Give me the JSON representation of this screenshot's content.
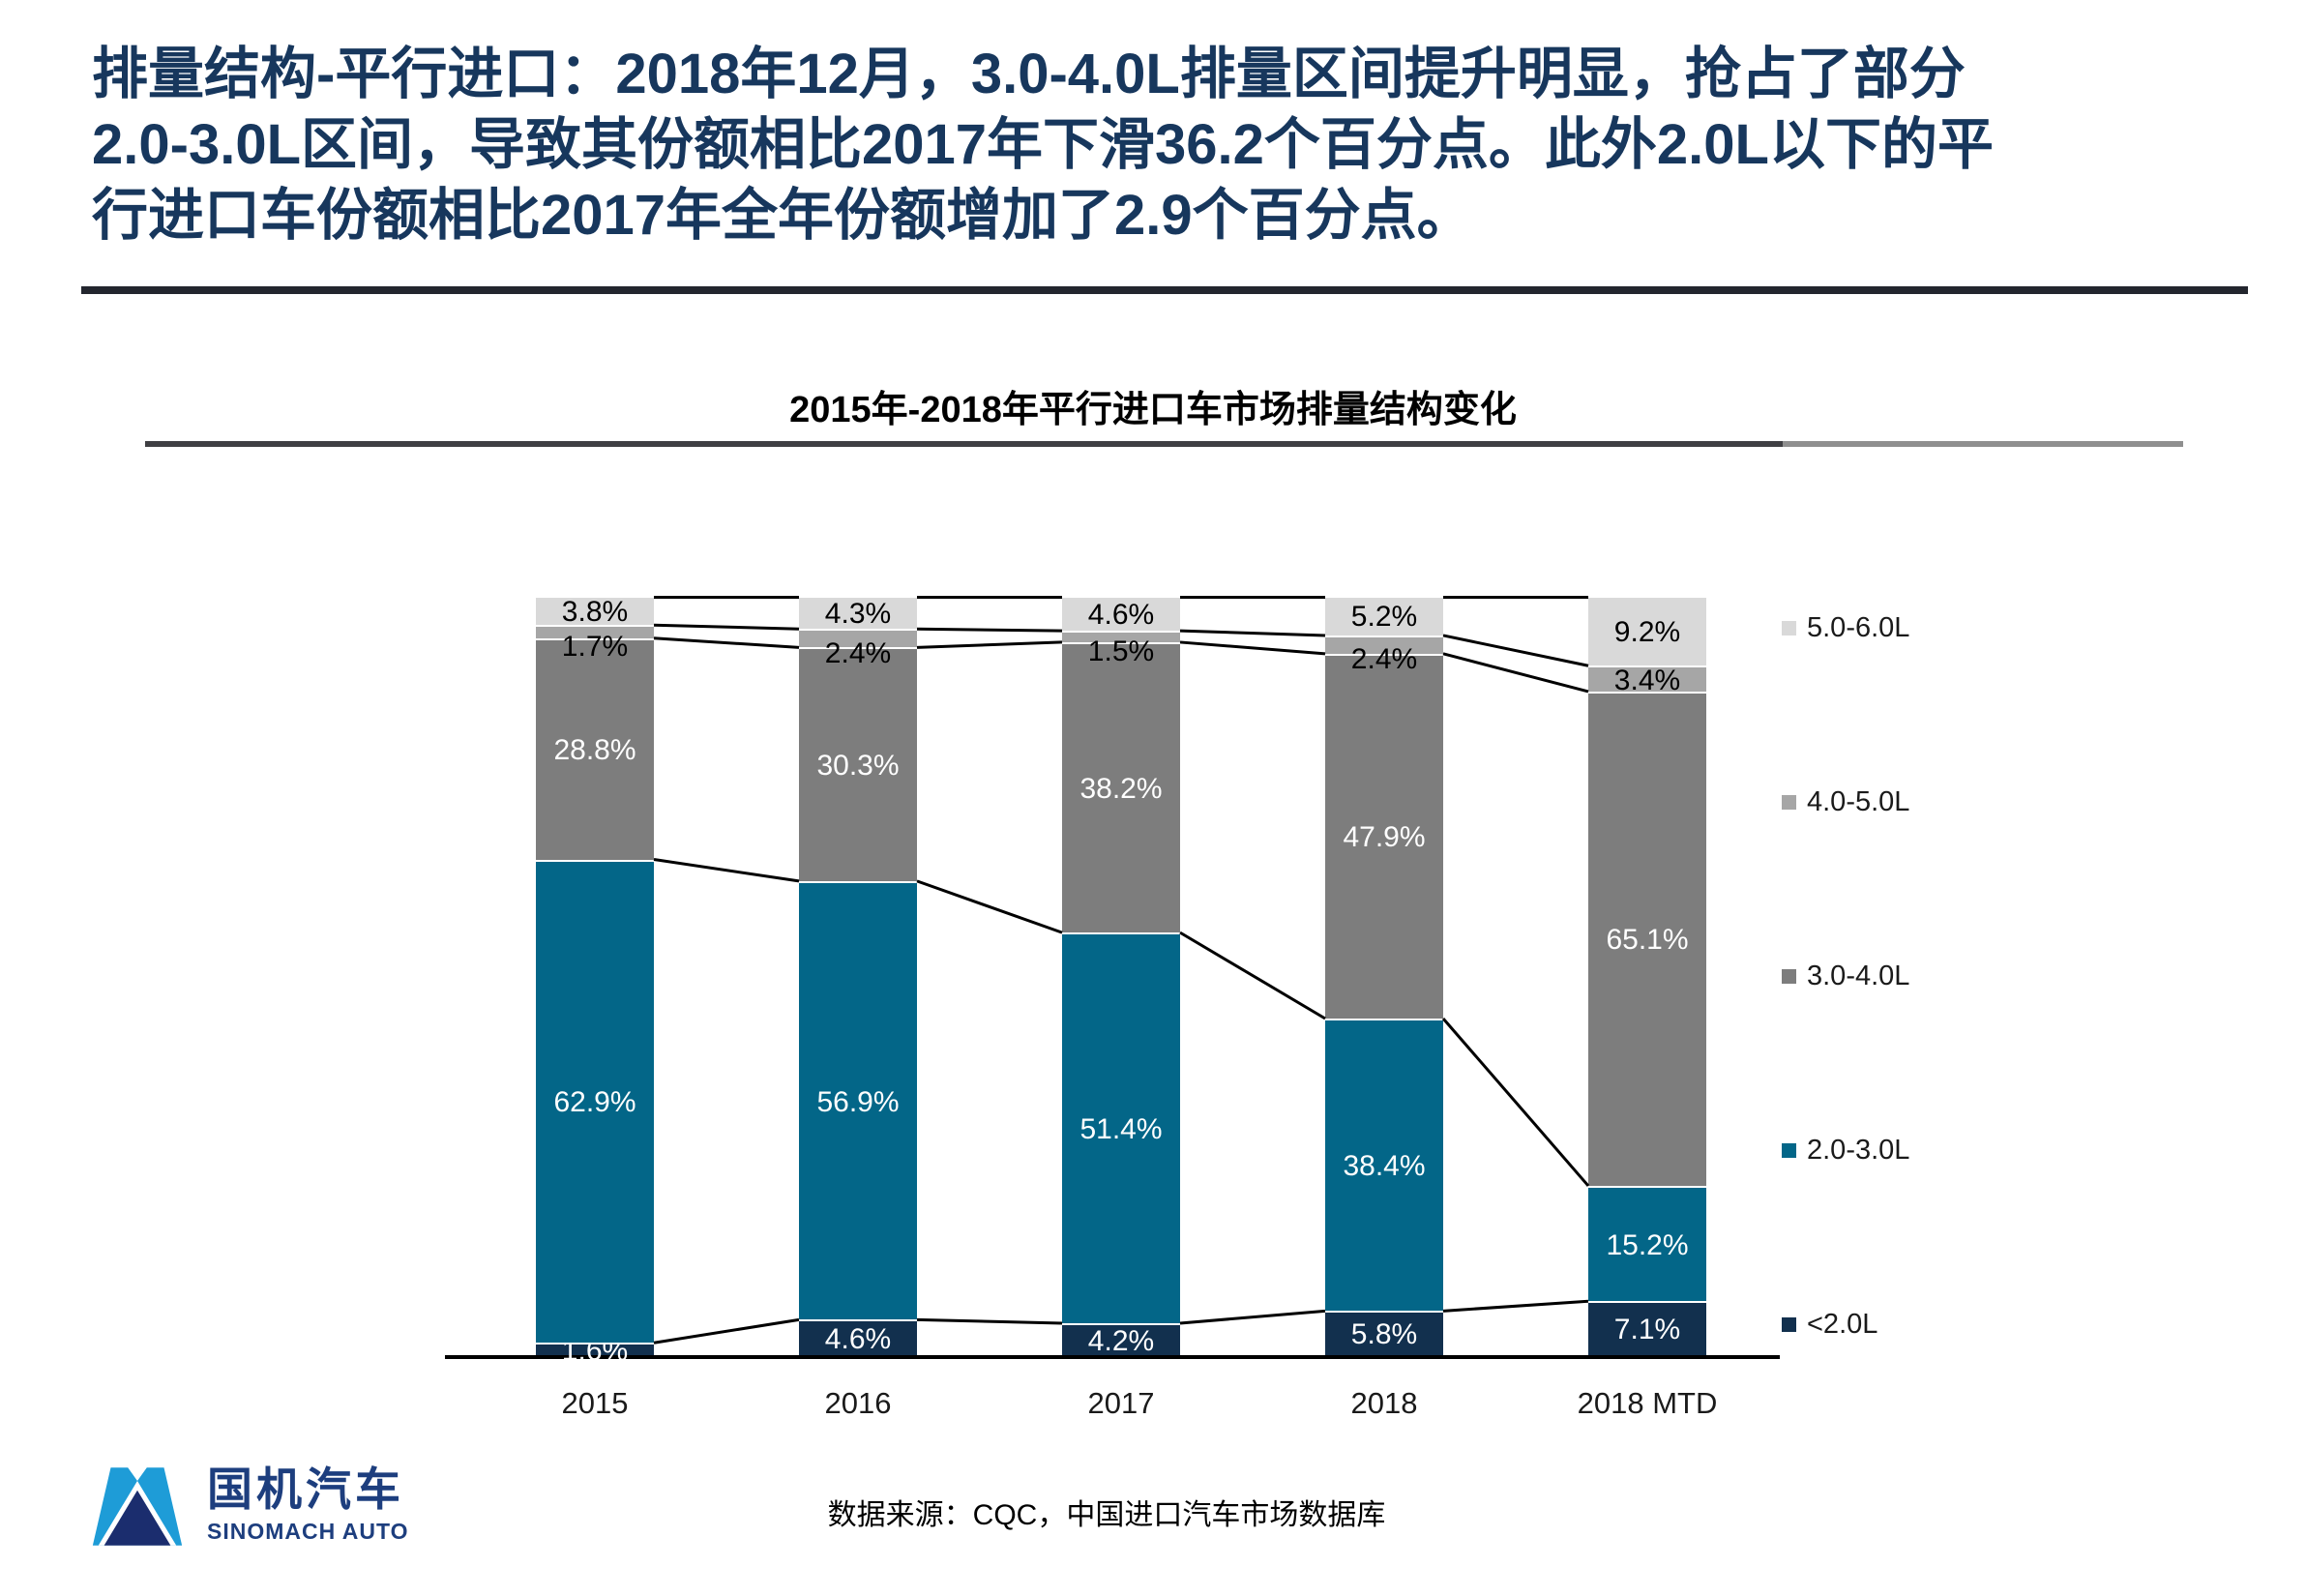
{
  "header": {
    "title_lines": [
      "排量结构-平行进口：2018年12月，3.0-4.0L排量区间提升明显，抢占了部分",
      "2.0-3.0L区间，导致其份额相比2017年下滑36.2个百分点。此外2.0L以下的平",
      "行进口车份额相比2017年全年份额增加了2.9个百分点。"
    ],
    "title_color": "#17375d"
  },
  "chart_data": {
    "type": "bar",
    "stacked": true,
    "unit": "percent",
    "title": "2015年-2018年平行进口车市场排量结构变化",
    "categories": [
      "2015",
      "2016",
      "2017",
      "2018",
      "2018 MTD"
    ],
    "series": [
      {
        "name": "<2.0L",
        "color": "#12304e",
        "label_color": "#ffffff",
        "values": [
          1.6,
          4.6,
          4.2,
          5.8,
          7.1
        ]
      },
      {
        "name": "2.0-3.0L",
        "color": "#036688",
        "label_color": "#ffffff",
        "values": [
          62.9,
          56.9,
          51.4,
          38.4,
          15.2
        ]
      },
      {
        "name": "3.0-4.0L",
        "color": "#7d7d7d",
        "label_color": "#ffffff",
        "values": [
          28.8,
          30.3,
          38.2,
          47.9,
          65.1
        ]
      },
      {
        "name": "4.0-5.0L",
        "color": "#a6a6a6",
        "label_color": "#000000",
        "values": [
          1.7,
          2.4,
          1.5,
          2.4,
          3.4
        ]
      },
      {
        "name": "5.0-6.0L",
        "color": "#d9d9d9",
        "label_color": "#000000",
        "values": [
          3.8,
          4.3,
          4.6,
          5.2,
          9.2
        ]
      }
    ],
    "legend_order_top_to_bottom": [
      "5.0-6.0L",
      "4.0-5.0L",
      "3.0-4.0L",
      "2.0-3.0L",
      "<2.0L"
    ],
    "legend_position": "right",
    "connector_lines": true,
    "ylim": [
      0,
      100
    ],
    "gridlines": false,
    "y_axis_shown": false
  },
  "source_note": "数据来源：CQC，中国进口汽车市场数据库",
  "footer": {
    "logo_cn": "国机汽车",
    "logo_en": "SINOMACH AUTO"
  }
}
